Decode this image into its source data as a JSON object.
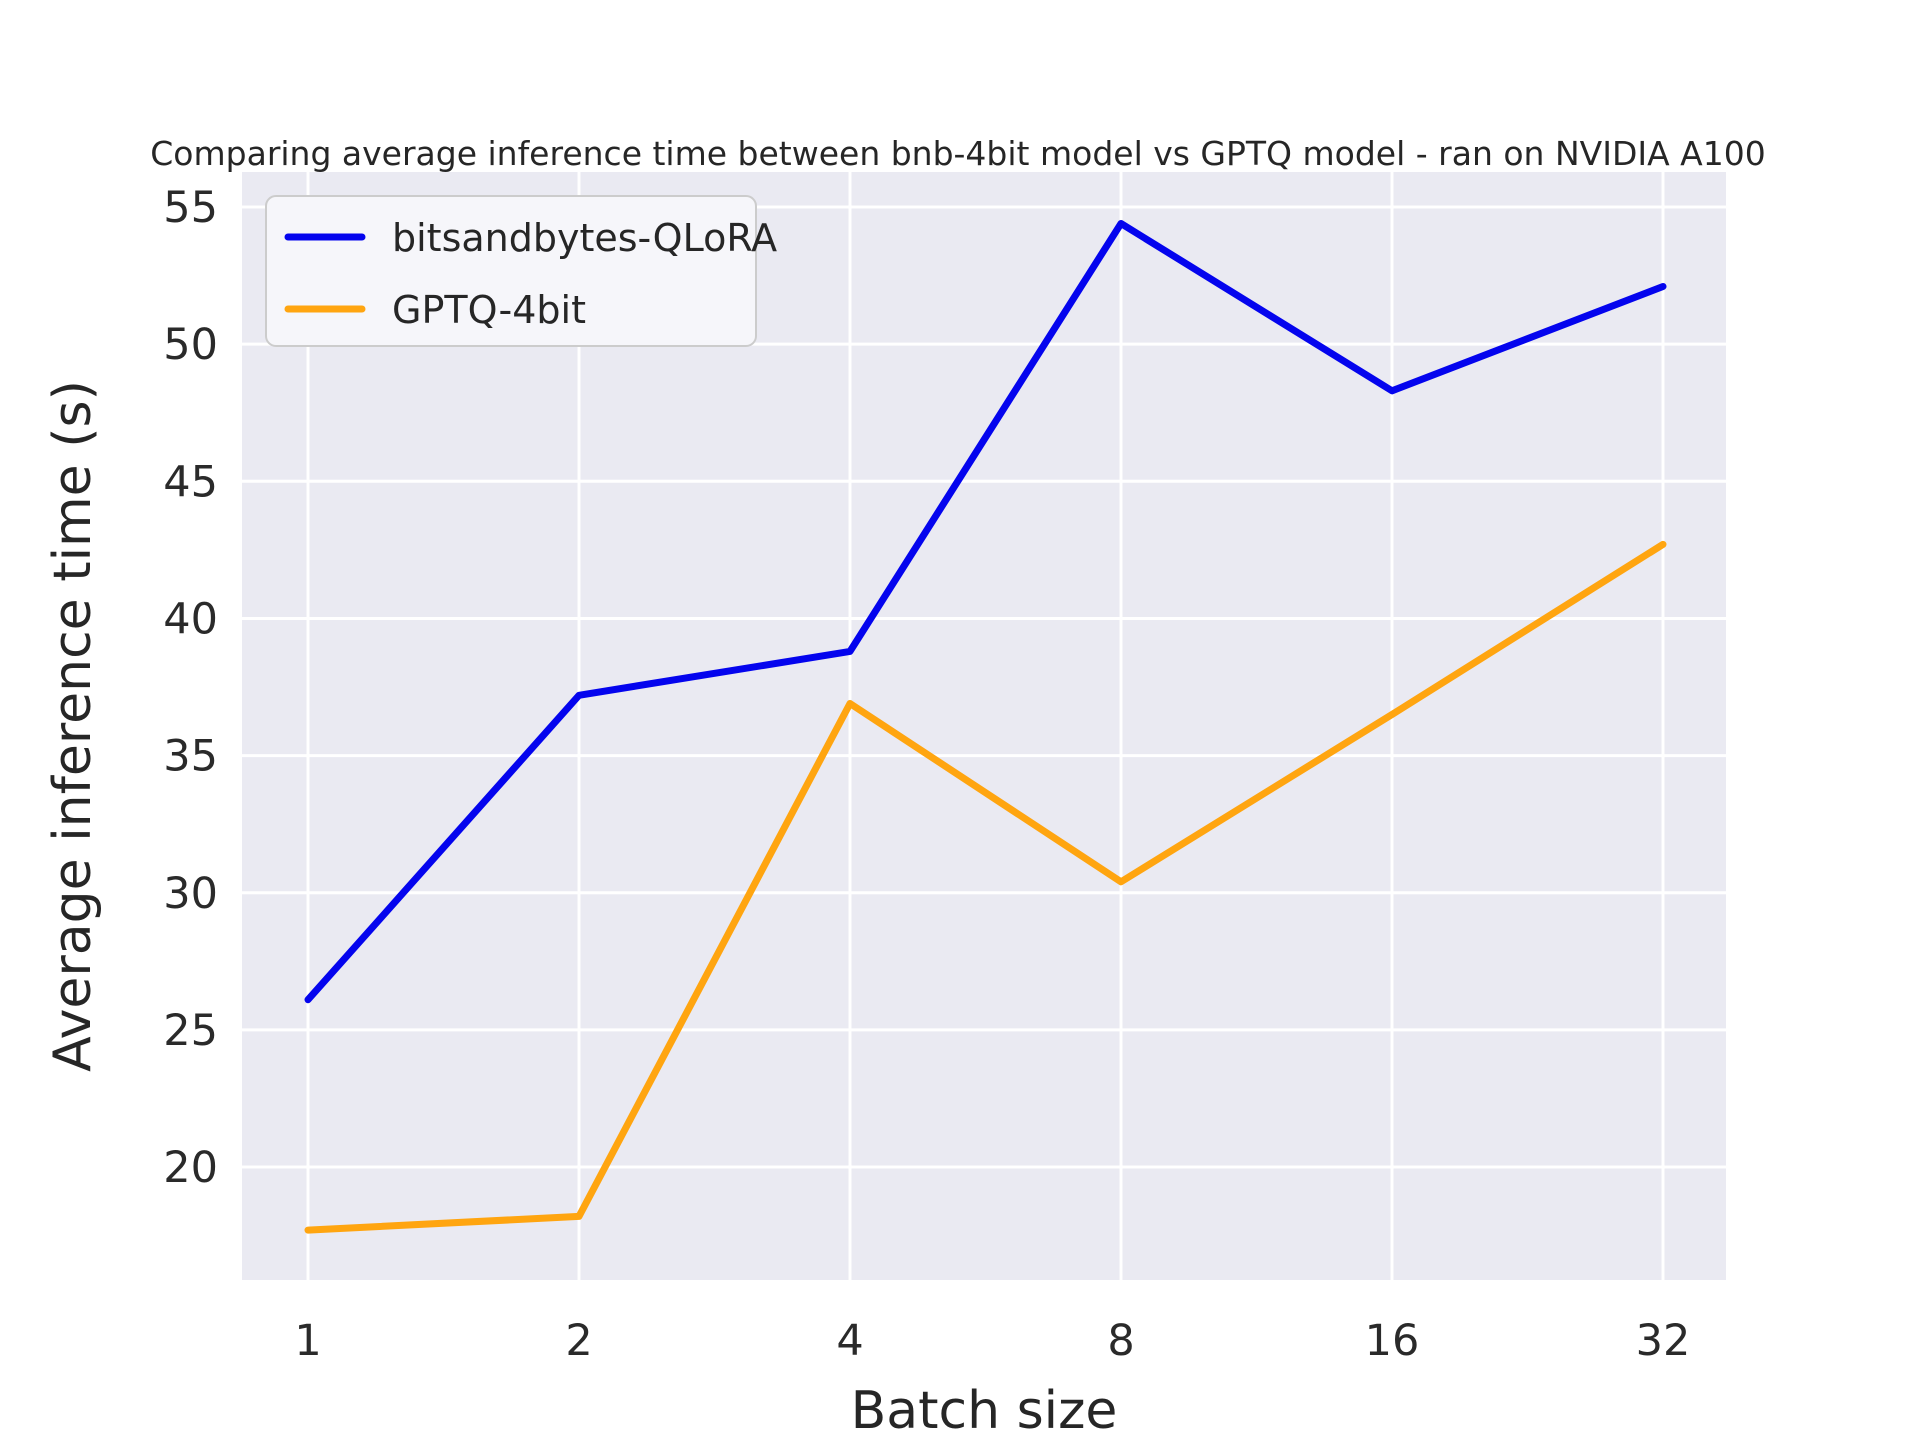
{
  "chart_data": {
    "type": "line",
    "title": "Comparing average inference time between bnb-4bit model vs GPTQ model - ran on NVIDIA A100",
    "xlabel": "Batch size",
    "ylabel": "Average inference time (s)",
    "categories": [
      "1",
      "2",
      "4",
      "8",
      "16",
      "32"
    ],
    "series": [
      {
        "name": "bitsandbytes-QLoRA",
        "color": "#0404EE",
        "values": [
          26.1,
          37.2,
          38.8,
          54.4,
          48.3,
          52.1
        ]
      },
      {
        "name": "GPTQ-4bit",
        "color": "#FFA510",
        "values": [
          17.7,
          18.2,
          36.9,
          30.4,
          36.5,
          42.7
        ]
      }
    ],
    "yticks": [
      55,
      50,
      45,
      40,
      35,
      30,
      25,
      20
    ],
    "ylim": [
      15.9,
      56.3
    ],
    "x_scale": "categorical",
    "grid": true,
    "legend_position": "upper left",
    "plot_background": "#EAEAF2",
    "grid_color": "#FFFFFF",
    "text_color": "#262626",
    "tick_color": "#2A2A2A"
  }
}
